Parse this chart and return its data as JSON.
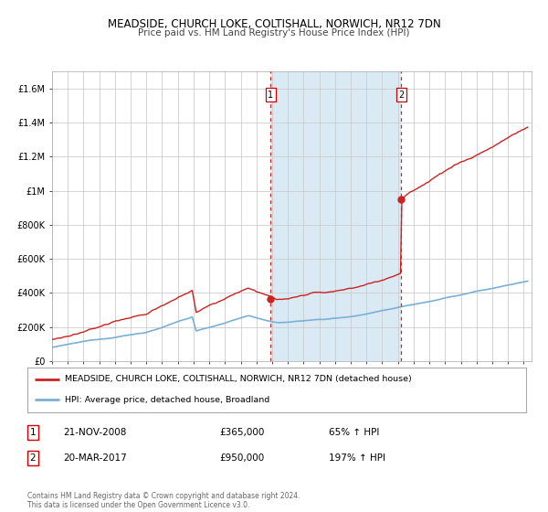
{
  "title": "MEADSIDE, CHURCH LOKE, COLTISHALL, NORWICH, NR12 7DN",
  "subtitle": "Price paid vs. HM Land Registry's House Price Index (HPI)",
  "hpi_color": "#7ab0d4",
  "price_color": "#cc2222",
  "bg_color": "#ffffff",
  "plot_bg_color": "#ffffff",
  "grid_color": "#cccccc",
  "highlight_bg": "#daeaf5",
  "ylim": [
    0,
    1700000
  ],
  "xlim_start": 1995.0,
  "xlim_end": 2025.5,
  "sale1_x": 2008.896,
  "sale1_y": 365000,
  "sale2_x": 2017.22,
  "sale2_y": 950000,
  "legend_label_price": "MEADSIDE, CHURCH LOKE, COLTISHALL, NORWICH, NR12 7DN (detached house)",
  "legend_label_hpi": "HPI: Average price, detached house, Broadland",
  "table_row1": [
    "1",
    "21-NOV-2008",
    "£365,000",
    "65% ↑ HPI"
  ],
  "table_row2": [
    "2",
    "20-MAR-2017",
    "£950,000",
    "197% ↑ HPI"
  ],
  "footer": "Contains HM Land Registry data © Crown copyright and database right 2024.\nThis data is licensed under the Open Government Licence v3.0.",
  "yticks": [
    0,
    200000,
    400000,
    600000,
    800000,
    1000000,
    1200000,
    1400000,
    1600000
  ],
  "ytick_labels": [
    "£0",
    "£200K",
    "£400K",
    "£600K",
    "£800K",
    "£1M",
    "£1.2M",
    "£1.4M",
    "£1.6M"
  ]
}
